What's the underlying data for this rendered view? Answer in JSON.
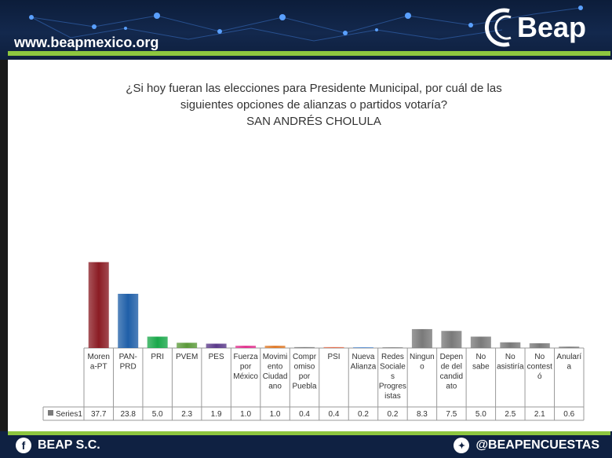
{
  "header": {
    "url": "www.beapmexico.org",
    "brand": "Beap"
  },
  "question": {
    "line1": "¿Si hoy fueran las elecciones para Presidente Municipal, por cuál de las",
    "line2": "siguientes opciones de alianzas o partidos votaría?",
    "line3": "SAN ANDRÉS CHOLULA"
  },
  "footer": {
    "left": "BEAP S.C.",
    "right": "@BEAPENCUESTAS",
    "left_icon": "facebook-icon",
    "right_icon": "twitter-icon"
  },
  "chart_data": {
    "type": "bar",
    "categories": [
      [
        "Moren",
        "a-PT"
      ],
      [
        "PAN-",
        "PRD"
      ],
      [
        "PRI"
      ],
      [
        "PVEM"
      ],
      [
        "PES"
      ],
      [
        "Fuerza",
        "por",
        "México"
      ],
      [
        "Movimi",
        "ento",
        "Ciudad",
        "ano"
      ],
      [
        "Compr",
        "omiso",
        "por",
        "Puebla"
      ],
      [
        "PSI"
      ],
      [
        "Nueva",
        "Alianza"
      ],
      [
        "Redes",
        "Sociale",
        "s",
        "Progres",
        "istas"
      ],
      [
        "Ningun",
        "o"
      ],
      [
        "Depen",
        "de del",
        "candid",
        "ato"
      ],
      [
        "No",
        "sabe"
      ],
      [
        "No",
        "asistiría"
      ],
      [
        "No",
        "contest",
        "ó"
      ],
      [
        "Anularí",
        "a"
      ]
    ],
    "series": [
      {
        "name": "Series1",
        "values": [
          37.7,
          23.8,
          5.0,
          2.3,
          1.9,
          1.0,
          1.0,
          0.4,
          0.4,
          0.2,
          0.2,
          8.3,
          7.5,
          5.0,
          2.5,
          2.1,
          0.6
        ],
        "value_labels": [
          "37.7",
          "23.8",
          "5.0",
          "2.3",
          "1.9",
          "1.0",
          "1.0",
          "0.4",
          "0.4",
          "0.2",
          "0.2",
          "8.3",
          "7.5",
          "5.0",
          "2.5",
          "2.1",
          "0.6"
        ]
      }
    ],
    "colors": [
      "#8b1c24",
      "#1f5fa8",
      "#1aa84a",
      "#5b9a3a",
      "#5b3a8a",
      "#e2338f",
      "#e07b2a",
      "#7a7a7a",
      "#e06a4a",
      "#5a8fd0",
      "#888888",
      "#7a7a7a",
      "#7a7a7a",
      "#7a7a7a",
      "#7a7a7a",
      "#7a7a7a",
      "#7a7a7a"
    ],
    "ylim": [
      0,
      40
    ],
    "legend": "data-table"
  }
}
